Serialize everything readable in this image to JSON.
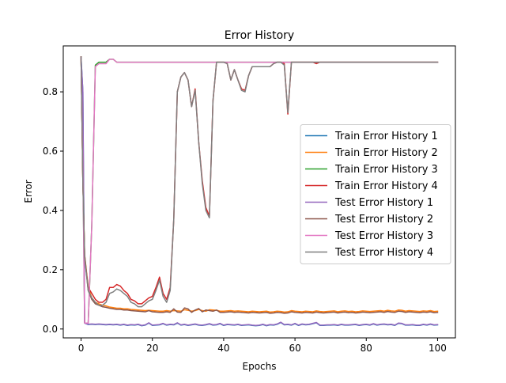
{
  "chart_data": {
    "type": "line",
    "title": "Error History",
    "xlabel": "Epochs",
    "ylabel": "Error",
    "xlim": [
      -5,
      105
    ],
    "ylim": [
      -0.03,
      0.955
    ],
    "xticks": [
      0,
      20,
      40,
      60,
      80,
      100
    ],
    "xtick_labels": [
      "0",
      "20",
      "40",
      "60",
      "80",
      "100"
    ],
    "yticks": [
      0.0,
      0.2,
      0.4,
      0.6,
      0.8
    ],
    "ytick_labels": [
      "0.0",
      "0.2",
      "0.4",
      "0.6",
      "0.8"
    ],
    "grid": false,
    "legend_position": "center-right",
    "x": [
      0,
      0.5,
      1,
      2,
      3,
      4,
      5,
      6,
      7,
      8,
      9,
      10,
      11,
      12,
      13,
      14,
      15,
      16,
      17,
      18,
      19,
      20,
      21,
      22,
      23,
      24,
      25,
      26,
      27,
      28,
      29,
      30,
      31,
      32,
      33,
      34,
      35,
      36,
      37,
      38,
      39,
      40,
      41,
      42,
      43,
      44,
      45,
      46,
      47,
      48,
      49,
      50,
      51,
      52,
      53,
      54,
      55,
      56,
      57,
      58,
      59,
      60,
      61,
      62,
      63,
      64,
      65,
      66,
      67,
      68,
      69,
      70,
      71,
      72,
      73,
      74,
      75,
      76,
      77,
      78,
      79,
      80,
      81,
      82,
      83,
      84,
      85,
      86,
      87,
      88,
      89,
      90,
      91,
      92,
      93,
      94,
      95,
      96,
      97,
      98,
      99,
      100
    ],
    "series": [
      {
        "name": "Train Error History 1",
        "color": "#1f77b4",
        "values": [
          0.915,
          0.8,
          0.02,
          0.015,
          0.016,
          0.015,
          0.016,
          0.015,
          0.014,
          0.015,
          0.014,
          0.015,
          0.013,
          0.015,
          0.012,
          0.014,
          0.013,
          0.015,
          0.011,
          0.013,
          0.02,
          0.012,
          0.013,
          0.014,
          0.018,
          0.013,
          0.015,
          0.014,
          0.02,
          0.013,
          0.015,
          0.012,
          0.014,
          0.016,
          0.013,
          0.012,
          0.014,
          0.017,
          0.013,
          0.014,
          0.018,
          0.012,
          0.015,
          0.014,
          0.013,
          0.015,
          0.012,
          0.013,
          0.014,
          0.012,
          0.011,
          0.012,
          0.015,
          0.011,
          0.014,
          0.013,
          0.016,
          0.022,
          0.014,
          0.015,
          0.013,
          0.018,
          0.012,
          0.016,
          0.014,
          0.015,
          0.018,
          0.021,
          0.012,
          0.012,
          0.013,
          0.013,
          0.014,
          0.012,
          0.015,
          0.013,
          0.013,
          0.014,
          0.015,
          0.012,
          0.014,
          0.015,
          0.013,
          0.017,
          0.013,
          0.015,
          0.016,
          0.014,
          0.015,
          0.012,
          0.019,
          0.018,
          0.013,
          0.013,
          0.014,
          0.012,
          0.012,
          0.015,
          0.013,
          0.016,
          0.013,
          0.014
        ]
      },
      {
        "name": "Train Error History 2",
        "color": "#ff7f0e",
        "values": [
          0.918,
          0.5,
          0.25,
          0.14,
          0.105,
          0.09,
          0.085,
          0.08,
          0.078,
          0.074,
          0.072,
          0.07,
          0.07,
          0.068,
          0.068,
          0.066,
          0.065,
          0.064,
          0.063,
          0.062,
          0.063,
          0.062,
          0.061,
          0.06,
          0.06,
          0.062,
          0.06,
          0.062,
          0.061,
          0.06,
          0.065,
          0.063,
          0.06,
          0.062,
          0.066,
          0.062,
          0.06,
          0.065,
          0.064,
          0.063,
          0.06,
          0.06,
          0.061,
          0.062,
          0.06,
          0.061,
          0.06,
          0.059,
          0.058,
          0.06,
          0.059,
          0.058,
          0.059,
          0.06,
          0.057,
          0.058,
          0.06,
          0.059,
          0.057,
          0.058,
          0.062,
          0.06,
          0.059,
          0.058,
          0.06,
          0.059,
          0.058,
          0.061,
          0.059,
          0.058,
          0.059,
          0.06,
          0.061,
          0.058,
          0.06,
          0.061,
          0.059,
          0.06,
          0.058,
          0.059,
          0.061,
          0.06,
          0.059,
          0.06,
          0.061,
          0.062,
          0.06,
          0.063,
          0.061,
          0.06,
          0.064,
          0.063,
          0.06,
          0.062,
          0.061,
          0.06,
          0.059,
          0.061,
          0.06,
          0.062,
          0.059,
          0.06
        ]
      },
      {
        "name": "Train Error History 3",
        "color": "#2ca02c",
        "values": [
          0.915,
          0.55,
          0.02,
          0.02,
          0.35,
          0.89,
          0.9,
          0.9,
          0.9,
          0.91,
          0.91,
          0.9,
          0.9,
          0.9,
          0.9,
          0.9,
          0.9,
          0.9,
          0.9,
          0.9,
          0.9,
          0.9,
          0.9,
          0.9,
          0.9,
          0.9,
          0.9,
          0.9,
          0.9,
          0.9,
          0.9,
          0.9,
          0.9,
          0.9,
          0.9,
          0.9,
          0.9,
          0.9,
          0.9,
          0.9,
          0.9,
          0.9,
          0.9,
          0.9,
          0.9,
          0.9,
          0.9,
          0.9,
          0.9,
          0.9,
          0.9,
          0.9,
          0.9,
          0.9,
          0.9,
          0.9,
          0.9,
          0.9,
          0.9,
          0.9,
          0.9,
          0.9,
          0.9,
          0.9,
          0.9,
          0.9,
          0.9,
          0.9,
          0.9,
          0.9,
          0.9,
          0.9,
          0.9,
          0.9,
          0.9,
          0.9,
          0.9,
          0.9,
          0.9,
          0.9,
          0.9,
          0.9,
          0.9,
          0.9,
          0.9,
          0.9,
          0.9,
          0.9,
          0.9,
          0.9,
          0.9,
          0.9,
          0.9,
          0.9,
          0.9,
          0.9,
          0.9,
          0.9,
          0.9,
          0.9,
          0.9,
          0.9
        ]
      },
      {
        "name": "Train Error History 4",
        "color": "#d62728",
        "values": [
          0.918,
          0.5,
          0.24,
          0.14,
          0.12,
          0.1,
          0.09,
          0.09,
          0.1,
          0.14,
          0.14,
          0.15,
          0.145,
          0.13,
          0.12,
          0.1,
          0.095,
          0.085,
          0.085,
          0.095,
          0.105,
          0.11,
          0.14,
          0.175,
          0.12,
          0.1,
          0.14,
          0.37,
          0.8,
          0.85,
          0.865,
          0.84,
          0.75,
          0.81,
          0.63,
          0.5,
          0.41,
          0.38,
          0.77,
          0.9,
          0.9,
          0.9,
          0.895,
          0.84,
          0.875,
          0.84,
          0.81,
          0.805,
          0.855,
          0.885,
          0.885,
          0.885,
          0.885,
          0.885,
          0.885,
          0.895,
          0.9,
          0.9,
          0.895,
          0.725,
          0.9,
          0.9,
          0.9,
          0.9,
          0.9,
          0.9,
          0.9,
          0.895,
          0.9,
          0.9,
          0.9,
          0.9,
          0.9,
          0.9,
          0.9,
          0.9,
          0.9,
          0.9,
          0.9,
          0.9,
          0.9,
          0.9,
          0.9,
          0.9,
          0.9,
          0.9,
          0.9,
          0.9,
          0.9,
          0.9,
          0.9,
          0.9,
          0.9,
          0.9,
          0.9,
          0.9,
          0.9,
          0.9,
          0.9,
          0.9,
          0.9,
          0.9
        ]
      },
      {
        "name": "Test Error History 1",
        "color": "#9467bd",
        "values": [
          0.915,
          0.8,
          0.02,
          0.016,
          0.017,
          0.016,
          0.017,
          0.016,
          0.015,
          0.016,
          0.015,
          0.016,
          0.014,
          0.016,
          0.013,
          0.015,
          0.014,
          0.016,
          0.012,
          0.014,
          0.021,
          0.013,
          0.014,
          0.015,
          0.019,
          0.014,
          0.016,
          0.015,
          0.021,
          0.014,
          0.016,
          0.013,
          0.015,
          0.017,
          0.014,
          0.013,
          0.015,
          0.018,
          0.014,
          0.015,
          0.019,
          0.013,
          0.016,
          0.015,
          0.014,
          0.016,
          0.013,
          0.014,
          0.015,
          0.013,
          0.012,
          0.013,
          0.016,
          0.012,
          0.015,
          0.014,
          0.017,
          0.023,
          0.015,
          0.016,
          0.014,
          0.019,
          0.013,
          0.017,
          0.015,
          0.016,
          0.019,
          0.022,
          0.013,
          0.013,
          0.014,
          0.014,
          0.015,
          0.013,
          0.016,
          0.014,
          0.014,
          0.015,
          0.016,
          0.013,
          0.015,
          0.016,
          0.014,
          0.018,
          0.014,
          0.016,
          0.017,
          0.015,
          0.016,
          0.013,
          0.02,
          0.019,
          0.014,
          0.014,
          0.015,
          0.013,
          0.013,
          0.016,
          0.014,
          0.017,
          0.014,
          0.015
        ]
      },
      {
        "name": "Test Error History 2",
        "color": "#8c564b",
        "values": [
          0.918,
          0.5,
          0.25,
          0.13,
          0.1,
          0.085,
          0.08,
          0.075,
          0.073,
          0.07,
          0.068,
          0.066,
          0.066,
          0.064,
          0.064,
          0.062,
          0.061,
          0.06,
          0.059,
          0.058,
          0.062,
          0.058,
          0.057,
          0.056,
          0.056,
          0.058,
          0.056,
          0.068,
          0.057,
          0.056,
          0.071,
          0.068,
          0.056,
          0.064,
          0.069,
          0.058,
          0.064,
          0.062,
          0.06,
          0.064,
          0.056,
          0.056,
          0.057,
          0.058,
          0.056,
          0.057,
          0.056,
          0.055,
          0.054,
          0.056,
          0.055,
          0.054,
          0.055,
          0.056,
          0.053,
          0.054,
          0.056,
          0.055,
          0.053,
          0.054,
          0.058,
          0.056,
          0.055,
          0.054,
          0.056,
          0.055,
          0.054,
          0.057,
          0.055,
          0.054,
          0.055,
          0.056,
          0.057,
          0.054,
          0.056,
          0.057,
          0.055,
          0.056,
          0.054,
          0.055,
          0.057,
          0.056,
          0.055,
          0.056,
          0.057,
          0.058,
          0.056,
          0.059,
          0.057,
          0.056,
          0.06,
          0.059,
          0.056,
          0.058,
          0.057,
          0.056,
          0.055,
          0.057,
          0.056,
          0.058,
          0.055,
          0.056
        ]
      },
      {
        "name": "Test Error History 3",
        "color": "#e377c2",
        "values": [
          0.915,
          0.55,
          0.02,
          0.02,
          0.35,
          0.885,
          0.895,
          0.895,
          0.895,
          0.91,
          0.91,
          0.9,
          0.9,
          0.9,
          0.9,
          0.9,
          0.9,
          0.9,
          0.9,
          0.9,
          0.9,
          0.9,
          0.9,
          0.9,
          0.9,
          0.9,
          0.9,
          0.9,
          0.9,
          0.9,
          0.9,
          0.9,
          0.9,
          0.9,
          0.9,
          0.9,
          0.9,
          0.9,
          0.9,
          0.9,
          0.9,
          0.9,
          0.9,
          0.9,
          0.9,
          0.9,
          0.9,
          0.9,
          0.9,
          0.9,
          0.9,
          0.9,
          0.9,
          0.9,
          0.9,
          0.9,
          0.9,
          0.9,
          0.9,
          0.9,
          0.9,
          0.9,
          0.9,
          0.9,
          0.9,
          0.9,
          0.9,
          0.9,
          0.9,
          0.9,
          0.9,
          0.9,
          0.9,
          0.9,
          0.9,
          0.9,
          0.9,
          0.9,
          0.9,
          0.9,
          0.9,
          0.9,
          0.9,
          0.9,
          0.9,
          0.9,
          0.9,
          0.9,
          0.9,
          0.9,
          0.9,
          0.9,
          0.9,
          0.9,
          0.9,
          0.9,
          0.9,
          0.9,
          0.9,
          0.9,
          0.9,
          0.9
        ]
      },
      {
        "name": "Test Error History 4",
        "color": "#7f7f7f",
        "values": [
          0.918,
          0.5,
          0.24,
          0.13,
          0.105,
          0.09,
          0.08,
          0.08,
          0.09,
          0.12,
          0.125,
          0.135,
          0.13,
          0.12,
          0.11,
          0.09,
          0.085,
          0.075,
          0.075,
          0.085,
          0.095,
          0.1,
          0.13,
          0.165,
          0.11,
          0.09,
          0.13,
          0.37,
          0.8,
          0.85,
          0.865,
          0.84,
          0.75,
          0.805,
          0.63,
          0.49,
          0.4,
          0.375,
          0.77,
          0.9,
          0.9,
          0.9,
          0.895,
          0.84,
          0.875,
          0.84,
          0.805,
          0.8,
          0.855,
          0.885,
          0.885,
          0.885,
          0.885,
          0.885,
          0.885,
          0.895,
          0.9,
          0.9,
          0.89,
          0.73,
          0.9,
          0.9,
          0.9,
          0.9,
          0.9,
          0.9,
          0.9,
          0.9,
          0.9,
          0.9,
          0.9,
          0.9,
          0.9,
          0.9,
          0.9,
          0.9,
          0.9,
          0.9,
          0.9,
          0.9,
          0.9,
          0.9,
          0.9,
          0.9,
          0.9,
          0.9,
          0.9,
          0.9,
          0.9,
          0.9,
          0.9,
          0.9,
          0.9,
          0.9,
          0.9,
          0.9,
          0.9,
          0.9,
          0.9,
          0.9,
          0.9,
          0.9
        ]
      }
    ]
  }
}
